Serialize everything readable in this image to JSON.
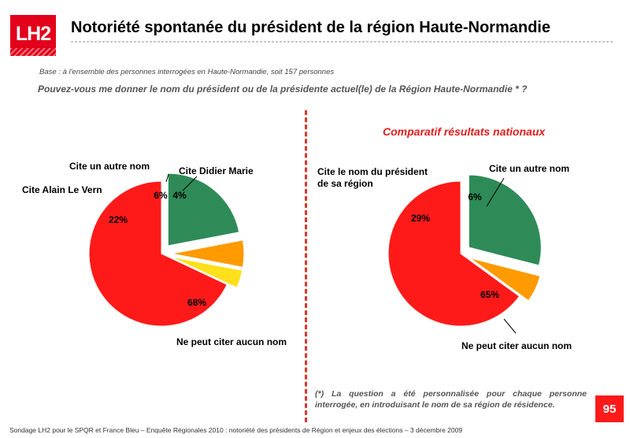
{
  "logo": {
    "text": "LH2",
    "color": "#e2001a"
  },
  "title": "Notoriété spontanée du président de la région Haute-Normandie",
  "base": "Base : à l'ensemble des personnes interrogées en Haute-Normandie, soit 157 personnes",
  "question": "Pouvez-vous me donner le nom du président ou de la présidente actuel(le) de la Région Haute-Normandie * ?",
  "comparatif_title": "Comparatif résultats nationaux",
  "note": "(*) La question a été personnalisée pour chaque personne interrogée, en introduisant le nom de sa région de résidence.",
  "page_number": "95",
  "footer": "Sondage LH2 pour le SPQR et France Bleu – Enquête Régionales 2010 : notoriété des présidents de Région et enjeux des élections –  3 décembre 2009",
  "colors": {
    "red": "#ff1a1a",
    "green": "#2e8b57",
    "orange": "#ff9a00",
    "yellow": "#ffe01a",
    "accent_red": "#e41d1d"
  },
  "chart_data": [
    {
      "type": "pie",
      "slices": [
        {
          "label": "Ne peut citer aucun nom",
          "value": 68,
          "value_label": "68%",
          "color": "#ff1a1a"
        },
        {
          "label": "Cite Alain Le Vern",
          "value": 22,
          "value_label": "22%",
          "color": "#2e8b57"
        },
        {
          "label": "Cite un autre nom",
          "value": 6,
          "value_label": "6%",
          "color": "#ff9a00"
        },
        {
          "label": "Cite Didier Marie",
          "value": 4,
          "value_label": "4%",
          "color": "#ffe01a"
        }
      ]
    },
    {
      "type": "pie",
      "title": "Comparatif résultats nationaux",
      "slices": [
        {
          "label": "Ne peut citer aucun nom",
          "value": 65,
          "value_label": "65%",
          "color": "#ff1a1a"
        },
        {
          "label": "Cite le nom du président de sa région",
          "value": 29,
          "value_label": "29%",
          "color": "#2e8b57"
        },
        {
          "label": "Cite un autre nom",
          "value": 6,
          "value_label": "6%",
          "color": "#ff9a00"
        }
      ]
    }
  ]
}
